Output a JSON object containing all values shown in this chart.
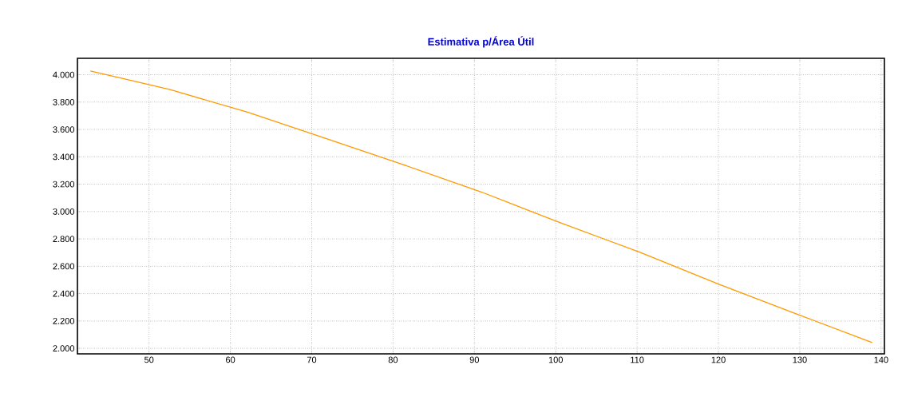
{
  "chart_data": {
    "type": "line",
    "title": "Estimativa p/Área Útil",
    "x": [
      42.8,
      52.6,
      62.1,
      71.6,
      81.1,
      90.9,
      100.5,
      110.3,
      120.0,
      129.8,
      138.9
    ],
    "series": [
      {
        "color": "#ff9900",
        "values": [
          4027,
          3891,
          3726,
          3537,
          3346,
          3142,
          2919,
          2704,
          2470,
          2247,
          2043
        ]
      }
    ],
    "xlim": [
      41.2,
      140.4
    ],
    "ylim": [
      1960,
      4120
    ],
    "xticks": [
      50,
      60,
      70,
      80,
      90,
      100,
      110,
      120,
      130,
      140
    ],
    "yticks": [
      {
        "value": 2000,
        "label": "2.000"
      },
      {
        "value": 2200,
        "label": "2.200"
      },
      {
        "value": 2400,
        "label": "2.400"
      },
      {
        "value": 2600,
        "label": "2.600"
      },
      {
        "value": 2800,
        "label": "2.800"
      },
      {
        "value": 3000,
        "label": "3.000"
      },
      {
        "value": 3200,
        "label": "3.200"
      },
      {
        "value": 3400,
        "label": "3.400"
      },
      {
        "value": 3600,
        "label": "3.600"
      },
      {
        "value": 3800,
        "label": "3.800"
      },
      {
        "value": 4000,
        "label": "4.000"
      }
    ],
    "grid": true,
    "marker": "none",
    "line_style": "solid"
  }
}
